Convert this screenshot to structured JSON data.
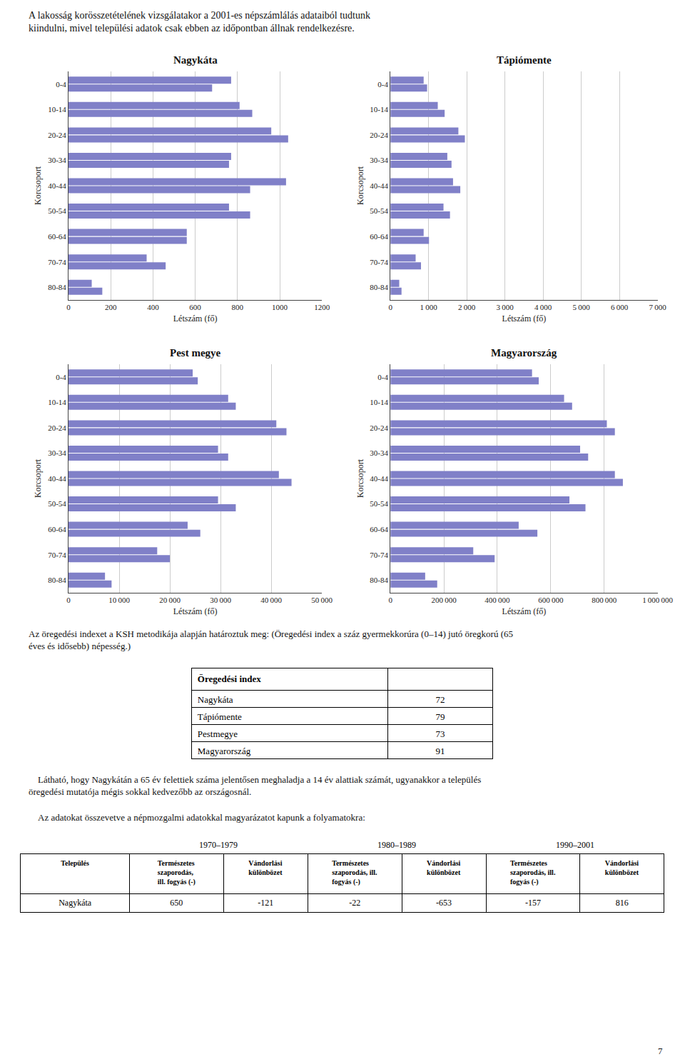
{
  "chart_data": [
    {
      "type": "bar",
      "orientation": "horizontal",
      "title": "Nagykáta",
      "categories": [
        "80-84",
        "70-74",
        "60-64",
        "50-54",
        "40-44",
        "30-34",
        "20-24",
        "10-14",
        "0-4"
      ],
      "series": [
        {
          "color": "#8080c8",
          "values": [
            110,
            370,
            560,
            760,
            1030,
            770,
            960,
            810,
            770
          ]
        },
        {
          "color": "#8080c8",
          "values": [
            160,
            460,
            560,
            860,
            860,
            760,
            1040,
            870,
            680
          ]
        }
      ],
      "xlabel": "Létszám (fő)",
      "ylabel": "Korcsoport",
      "xlim": [
        0,
        1200
      ],
      "xticks": [
        0,
        200,
        400,
        600,
        800,
        1000,
        1200
      ],
      "grid": true
    },
    {
      "type": "bar",
      "orientation": "horizontal",
      "title": "Tápiómente",
      "categories": [
        "80-84",
        "70-74",
        "60-64",
        "50-54",
        "40-44",
        "30-34",
        "20-24",
        "10-14",
        "0-4"
      ],
      "series": [
        {
          "color": "#8080c8",
          "values": [
            230,
            660,
            870,
            1390,
            1640,
            1490,
            1780,
            1240,
            870
          ]
        },
        {
          "color": "#8080c8",
          "values": [
            290,
            800,
            1010,
            1560,
            1830,
            1600,
            1950,
            1420,
            960
          ]
        }
      ],
      "xlabel": "Létszám (fő)",
      "ylabel": "Korcsoport",
      "xlim": [
        0,
        7000
      ],
      "xticks": [
        0,
        {
          "value": 1000,
          "label": "1 000"
        },
        {
          "value": 2000,
          "label": "2 000"
        },
        {
          "value": 3000,
          "label": "3 000"
        },
        {
          "value": 4000,
          "label": "4 000"
        },
        {
          "value": 5000,
          "label": "5 000"
        },
        {
          "value": 6000,
          "label": "6 000"
        },
        {
          "value": 7000,
          "label": "7 000"
        }
      ],
      "grid": true
    },
    {
      "type": "bar",
      "orientation": "horizontal",
      "title": "Pest megye",
      "categories": [
        "80-84",
        "70-74",
        "60-64",
        "50-54",
        "40-44",
        "30-34",
        "20-24",
        "10-14",
        "0-4"
      ],
      "series": [
        {
          "color": "#8080c8",
          "values": [
            7200,
            17500,
            23500,
            29500,
            41500,
            29500,
            41000,
            31500,
            24500
          ]
        },
        {
          "color": "#8080c8",
          "values": [
            8500,
            20000,
            26000,
            33000,
            44000,
            31500,
            43000,
            33000,
            25500
          ]
        }
      ],
      "xlabel": "Létszám (fő)",
      "ylabel": "Korcsoport",
      "xlim": [
        0,
        50000
      ],
      "xticks": [
        0,
        {
          "value": 10000,
          "label": "10 000"
        },
        {
          "value": 20000,
          "label": "20 000"
        },
        {
          "value": 30000,
          "label": "30 000"
        },
        {
          "value": 40000,
          "label": "40 000"
        },
        {
          "value": 50000,
          "label": "50 000"
        }
      ],
      "grid": true
    },
    {
      "type": "bar",
      "orientation": "horizontal",
      "title": "Magyarország",
      "categories": [
        "80-84",
        "70-74",
        "60-64",
        "50-54",
        "40-44",
        "30-34",
        "20-24",
        "10-14",
        "0-4"
      ],
      "series": [
        {
          "color": "#8080c8",
          "values": [
            130000,
            310000,
            480000,
            670000,
            840000,
            710000,
            810000,
            650000,
            530000
          ]
        },
        {
          "color": "#8080c8",
          "values": [
            175000,
            390000,
            550000,
            730000,
            870000,
            740000,
            840000,
            680000,
            555000
          ]
        }
      ],
      "xlabel": "Létszám (fő)",
      "ylabel": "Korcsoport",
      "xlim": [
        0,
        1000000
      ],
      "xticks": [
        0,
        {
          "value": 200000,
          "label": "200 000"
        },
        {
          "value": 400000,
          "label": "400 000"
        },
        {
          "value": 600000,
          "label": "600 000"
        },
        {
          "value": 800000,
          "label": "800 000"
        },
        {
          "value": 1000000,
          "label": "1 000 000"
        }
      ],
      "grid": true
    },
    {
      "type": "table",
      "title": "Öregedési index",
      "rows": [
        [
          "Nagykáta",
          72
        ],
        [
          "Tápiómente",
          79
        ],
        [
          "Pestmegye",
          73
        ],
        [
          "Magyarország",
          91
        ]
      ]
    },
    {
      "type": "table",
      "columns": [
        "Település",
        "Természetes\nszaporodás,\nill. fogyás (-)",
        "Vándorlási\nkülönbözet",
        "Természetes\nszaporodás, ill.\nfogyás (-)",
        "Vándorlási\nkülönbözet",
        "Természetes\nszaporodás, ill.\nfogyás (-)",
        "Vándorlási\nkülönbözet"
      ],
      "periods": [
        "1970–1979",
        "1980–1989",
        "1990–2001"
      ],
      "rows": [
        [
          "Nagykáta",
          650,
          -121,
          -22,
          -653,
          -157,
          816
        ]
      ]
    }
  ],
  "annotations": [
    "A lakosság korösszetételének vizsgálatakor a 2001-es népszámlálás adataiból tudtunk\nkiindulni, mivel települési adatok csak ebben az időpontban állnak rendelkezésre.",
    "Az öregedési indexet a KSH metodikája alapján határoztuk meg: (Öregedési index a száz gyermekkorúra (0–14) jutó öregkorú (65 éves és idősebb) népesség.)",
    "    Látható, hogy Nagykátán a 65 év felettiek száma jelentősen meghaladja a 14 év alattiak számát, ugyanakkor a település öregedési mutatója mégis sokkal kedvezőbb az országosnál.",
    "    Az adatokat összevetve a népmozgalmi adatokkal magyarázatot kapunk a folyamatokra:",
    "7"
  ]
}
